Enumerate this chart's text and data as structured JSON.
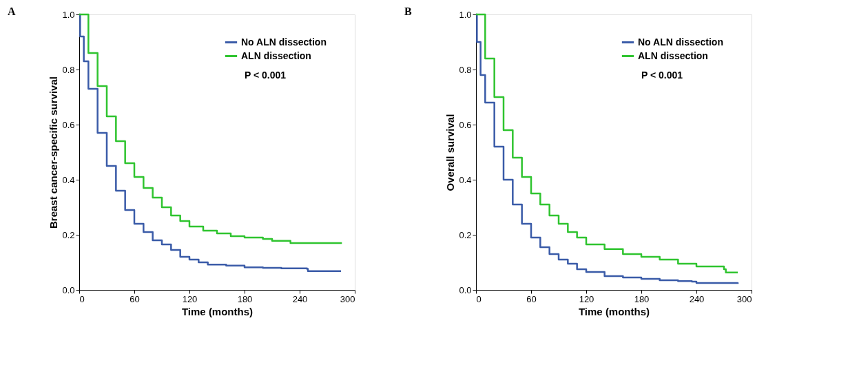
{
  "chart_data": [
    {
      "type": "step",
      "title": "A",
      "xlabel": "Time (months)",
      "ylabel": "Breast cancer-specific survival",
      "xlim": [
        0,
        300
      ],
      "xticks": [
        0,
        60,
        120,
        180,
        240,
        300
      ],
      "ylim": [
        0,
        1
      ],
      "yticks": [
        {
          "value": 0,
          "label": "0.0"
        },
        {
          "value": 0.2,
          "label": "0.2"
        },
        {
          "value": 0.4,
          "label": "0.4"
        },
        {
          "value": 0.6,
          "label": "0.6"
        },
        {
          "value": 0.8,
          "label": "0.8"
        },
        {
          "value": 1,
          "label": "1.0"
        }
      ],
      "legend": "top right",
      "grid": false,
      "annotations": [
        "P < 0.001"
      ],
      "series": [
        {
          "name": "No ALN dissection",
          "color": "#3a5ba8",
          "x": [
            0,
            1,
            5,
            10,
            20,
            30,
            40,
            50,
            60,
            70,
            80,
            90,
            100,
            110,
            120,
            130,
            140,
            160,
            180,
            200,
            220,
            248,
            249,
            285
          ],
          "values": [
            1.0,
            0.92,
            0.83,
            0.73,
            0.57,
            0.45,
            0.36,
            0.29,
            0.24,
            0.21,
            0.18,
            0.165,
            0.145,
            0.12,
            0.11,
            0.1,
            0.092,
            0.088,
            0.082,
            0.08,
            0.078,
            0.076,
            0.068,
            0.068
          ]
        },
        {
          "name": "ALN dissection",
          "color": "#2fc42f",
          "x": [
            0,
            10,
            20,
            30,
            40,
            50,
            60,
            70,
            80,
            90,
            100,
            110,
            120,
            135,
            150,
            165,
            180,
            195,
            200,
            210,
            228,
            230,
            286
          ],
          "values": [
            1.0,
            0.86,
            0.74,
            0.63,
            0.54,
            0.46,
            0.41,
            0.37,
            0.335,
            0.3,
            0.27,
            0.25,
            0.23,
            0.215,
            0.205,
            0.195,
            0.19,
            0.19,
            0.185,
            0.178,
            0.178,
            0.17,
            0.17
          ]
        }
      ]
    },
    {
      "type": "step",
      "title": "B",
      "xlabel": "Time (months)",
      "ylabel": "Overall survival",
      "xlim": [
        0,
        300
      ],
      "xticks": [
        0,
        60,
        120,
        180,
        240,
        300
      ],
      "ylim": [
        0,
        1
      ],
      "yticks": [
        {
          "value": 0,
          "label": "0.0"
        },
        {
          "value": 0.2,
          "label": "0.2"
        },
        {
          "value": 0.4,
          "label": "0.4"
        },
        {
          "value": 0.6,
          "label": "0.6"
        },
        {
          "value": 0.8,
          "label": "0.8"
        },
        {
          "value": 1,
          "label": "1.0"
        }
      ],
      "legend": "top right",
      "grid": false,
      "annotations": [
        "P < 0.001"
      ],
      "series": [
        {
          "name": "No ALN dissection",
          "color": "#3a5ba8",
          "x": [
            0,
            1,
            5,
            10,
            20,
            30,
            40,
            50,
            60,
            70,
            80,
            90,
            100,
            110,
            120,
            140,
            160,
            180,
            200,
            220,
            235,
            240,
            285
          ],
          "values": [
            1.0,
            0.9,
            0.78,
            0.68,
            0.52,
            0.4,
            0.31,
            0.24,
            0.19,
            0.155,
            0.13,
            0.11,
            0.095,
            0.075,
            0.065,
            0.05,
            0.045,
            0.04,
            0.035,
            0.032,
            0.03,
            0.025,
            0.022
          ]
        },
        {
          "name": "ALN dissection",
          "color": "#2fc42f",
          "x": [
            0,
            10,
            20,
            30,
            40,
            50,
            60,
            70,
            80,
            90,
            100,
            110,
            120,
            140,
            160,
            180,
            200,
            220,
            240,
            268,
            270,
            272,
            285
          ],
          "values": [
            1.0,
            0.84,
            0.7,
            0.58,
            0.48,
            0.41,
            0.35,
            0.31,
            0.27,
            0.24,
            0.21,
            0.19,
            0.165,
            0.148,
            0.13,
            0.12,
            0.11,
            0.095,
            0.085,
            0.085,
            0.075,
            0.063,
            0.063
          ]
        }
      ]
    }
  ]
}
